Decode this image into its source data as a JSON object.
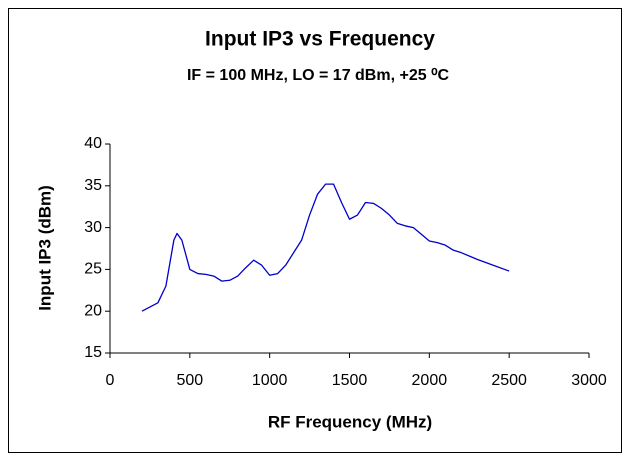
{
  "chart_data": {
    "type": "line",
    "title": "Input IP3 vs Frequency",
    "subtitle": "IF = 100 MHz, LO = 17 dBm, +25 ⁰C",
    "xlabel": "RF Frequency (MHz)",
    "ylabel": "Input IP3 (dBm)",
    "x": [
      200,
      300,
      350,
      400,
      420,
      450,
      500,
      550,
      600,
      650,
      700,
      750,
      800,
      850,
      900,
      950,
      1000,
      1050,
      1100,
      1200,
      1250,
      1300,
      1350,
      1400,
      1450,
      1500,
      1550,
      1600,
      1650,
      1700,
      1750,
      1800,
      1850,
      1900,
      1950,
      2000,
      2050,
      2100,
      2150,
      2200,
      2300,
      2400,
      2500
    ],
    "series": [
      {
        "name": "Input IP3",
        "color": "#0000cc",
        "values": [
          20,
          21,
          23,
          28.5,
          29.3,
          28.5,
          25,
          24.5,
          24.4,
          24.2,
          23.6,
          23.7,
          24.2,
          25.2,
          26.1,
          25.5,
          24.3,
          24.5,
          25.5,
          28.5,
          31.5,
          34,
          35.2,
          35.2,
          33,
          31,
          31.5,
          33,
          32.9,
          32.3,
          31.5,
          30.5,
          30.2,
          30,
          29.2,
          28.4,
          28.2,
          27.9,
          27.3,
          27,
          26.2,
          25.5,
          24.8
        ]
      }
    ],
    "xlim": [
      0,
      3000
    ],
    "xticks": [
      0,
      500,
      1000,
      1500,
      2000,
      2500,
      3000
    ],
    "ylim": [
      15,
      40
    ],
    "yticks": [
      15,
      20,
      25,
      30,
      35,
      40
    ],
    "grid": false
  }
}
